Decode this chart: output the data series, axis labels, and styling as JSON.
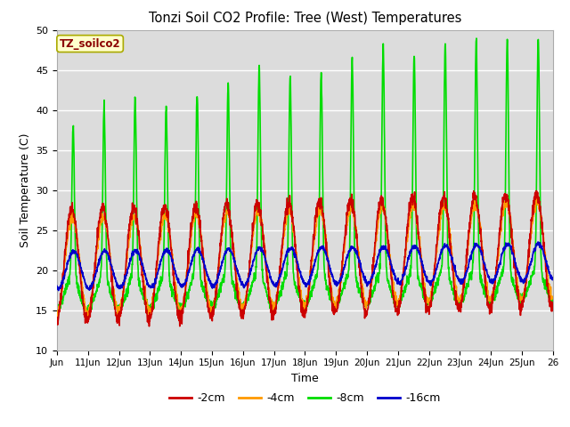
{
  "title": "Tonzi Soil CO2 Profile: Tree (West) Temperatures",
  "xlabel": "Time",
  "ylabel": "Soil Temperature (C)",
  "ylim": [
    10,
    50
  ],
  "xlim": [
    0,
    16
  ],
  "legend_label": "TZ_soilco2",
  "bg_color": "#dcdcdc",
  "grid_color": "#ffffff",
  "series": {
    "-2cm": {
      "color": "#cc0000",
      "lw": 1.2
    },
    "-4cm": {
      "color": "#ff9900",
      "lw": 1.2
    },
    "-8cm": {
      "color": "#00dd00",
      "lw": 1.2
    },
    "-16cm": {
      "color": "#0000cc",
      "lw": 1.2
    }
  },
  "xtick_labels": [
    "Jun",
    "11Jun",
    "12Jun",
    "13Jun",
    "14Jun",
    "15Jun",
    "16Jun",
    "17Jun",
    "18Jun",
    "19Jun",
    "20Jun",
    "21Jun",
    "22Jun",
    "23Jun",
    "24Jun",
    "25Jun",
    "26"
  ],
  "xtick_positions": [
    0,
    1,
    2,
    3,
    4,
    5,
    6,
    7,
    8,
    9,
    10,
    11,
    12,
    13,
    14,
    15,
    16
  ],
  "ytick_positions": [
    10,
    15,
    20,
    25,
    30,
    35,
    40,
    45,
    50
  ]
}
